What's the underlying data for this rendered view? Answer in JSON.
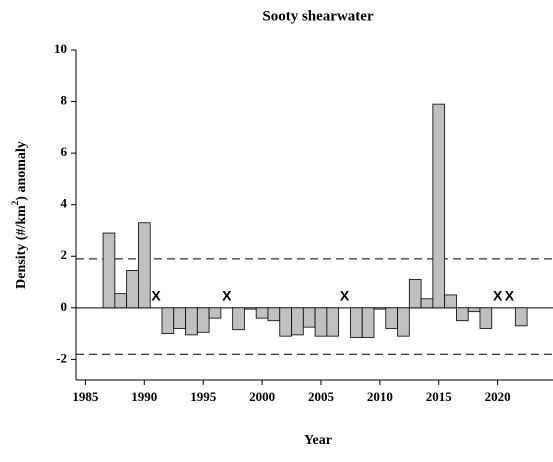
{
  "chart_data": {
    "type": "bar",
    "title": "Sooty shearwater",
    "xlabel": "Year",
    "ylabel": [
      "Density (#/km",
      "2",
      ") anomaly"
    ],
    "x": [
      1987,
      1988,
      1989,
      1990,
      1991,
      1992,
      1993,
      1994,
      1995,
      1996,
      1997,
      1998,
      1999,
      2000,
      2001,
      2002,
      2003,
      2004,
      2005,
      2006,
      2007,
      2008,
      2009,
      2010,
      2011,
      2012,
      2013,
      2014,
      2015,
      2016,
      2017,
      2018,
      2019,
      2020,
      2021,
      2022
    ],
    "values": [
      2.9,
      0.55,
      1.45,
      3.3,
      null,
      -1.0,
      -0.8,
      -1.05,
      -0.95,
      -0.4,
      null,
      -0.85,
      -0.05,
      -0.4,
      -0.5,
      -1.1,
      -1.05,
      -0.75,
      -1.1,
      -1.1,
      null,
      -1.15,
      -1.15,
      -0.05,
      -0.8,
      -1.1,
      1.1,
      0.35,
      7.9,
      0.5,
      -0.5,
      -0.15,
      -0.8,
      null,
      null,
      -0.7
    ],
    "missing_marker": "X",
    "color": "#c0c0c0",
    "thresholds": [
      1.9,
      -1.8
    ],
    "xlim": [
      1984.2,
      2024.7
    ],
    "xticks": [
      1985,
      1990,
      1995,
      2000,
      2005,
      2010,
      2015,
      2020
    ],
    "ylim": [
      -2.8,
      10
    ],
    "yticks": [
      -2,
      0,
      2,
      4,
      6,
      8,
      10
    ]
  }
}
